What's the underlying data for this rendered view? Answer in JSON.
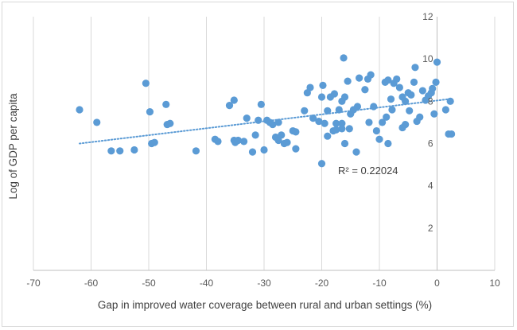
{
  "chart_data": {
    "type": "scatter",
    "title": "",
    "xlabel": "Gap in improved water coverage between rural and urban settings (%)",
    "ylabel": "Log of GDP per capita",
    "xlim": [
      -70,
      10
    ],
    "ylim": [
      0,
      12
    ],
    "xticks": [
      "-70",
      "-60",
      "-50",
      "-40",
      "-30",
      "-20",
      "-10",
      "0",
      "10"
    ],
    "yticks": [
      "0",
      "2",
      "4",
      "6",
      "8",
      "10",
      "12"
    ],
    "grid": "vertical",
    "annotation": "R² = 0.22024",
    "trendline": {
      "type": "linear",
      "x": [
        -62,
        2
      ],
      "y": [
        6.0,
        8.1
      ]
    },
    "colors": {
      "marker": "#5b9bd5",
      "trendline": "#5b9bd5",
      "grid": "#d9d9d9"
    },
    "points": [
      {
        "x": -62,
        "y": 7.6
      },
      {
        "x": -59,
        "y": 7.0
      },
      {
        "x": -56.5,
        "y": 5.65
      },
      {
        "x": -55,
        "y": 5.65
      },
      {
        "x": -52.5,
        "y": 5.7
      },
      {
        "x": -50.5,
        "y": 8.85
      },
      {
        "x": -49.8,
        "y": 7.5
      },
      {
        "x": -49.5,
        "y": 6.0
      },
      {
        "x": -49,
        "y": 6.05
      },
      {
        "x": -47,
        "y": 7.85
      },
      {
        "x": -46.8,
        "y": 6.9
      },
      {
        "x": -46.3,
        "y": 6.95
      },
      {
        "x": -41.8,
        "y": 5.65
      },
      {
        "x": -38.5,
        "y": 6.2
      },
      {
        "x": -38,
        "y": 6.1
      },
      {
        "x": -36,
        "y": 7.8
      },
      {
        "x": -35.2,
        "y": 8.05
      },
      {
        "x": -35.2,
        "y": 6.15
      },
      {
        "x": -35,
        "y": 6.05
      },
      {
        "x": -34.5,
        "y": 6.15
      },
      {
        "x": -33.5,
        "y": 6.1
      },
      {
        "x": -33,
        "y": 7.2
      },
      {
        "x": -32,
        "y": 5.6
      },
      {
        "x": -31.5,
        "y": 6.4
      },
      {
        "x": -31,
        "y": 7.1
      },
      {
        "x": -30.5,
        "y": 7.85
      },
      {
        "x": -30,
        "y": 5.7
      },
      {
        "x": -29.5,
        "y": 7.1
      },
      {
        "x": -29,
        "y": 7.0
      },
      {
        "x": -28.5,
        "y": 6.9
      },
      {
        "x": -28,
        "y": 6.3
      },
      {
        "x": -27.5,
        "y": 7.0
      },
      {
        "x": -27.5,
        "y": 6.15
      },
      {
        "x": -27,
        "y": 6.4
      },
      {
        "x": -26.5,
        "y": 6.0
      },
      {
        "x": -26,
        "y": 6.05
      },
      {
        "x": -25,
        "y": 6.6
      },
      {
        "x": -24.5,
        "y": 5.75
      },
      {
        "x": -24.5,
        "y": 6.55
      },
      {
        "x": -23,
        "y": 7.55
      },
      {
        "x": -22.5,
        "y": 8.4
      },
      {
        "x": -22,
        "y": 8.65
      },
      {
        "x": -21.5,
        "y": 7.2
      },
      {
        "x": -20.5,
        "y": 7.05
      },
      {
        "x": -20,
        "y": 5.05
      },
      {
        "x": -20,
        "y": 8.2
      },
      {
        "x": -19.8,
        "y": 8.75
      },
      {
        "x": -19.5,
        "y": 6.95
      },
      {
        "x": -19,
        "y": 7.55
      },
      {
        "x": -19,
        "y": 6.35
      },
      {
        "x": -18.5,
        "y": 8.2
      },
      {
        "x": -18,
        "y": 6.6
      },
      {
        "x": -17.8,
        "y": 8.35
      },
      {
        "x": -17.5,
        "y": 6.95
      },
      {
        "x": -17.5,
        "y": 6.65
      },
      {
        "x": -17,
        "y": 7.6
      },
      {
        "x": -16.5,
        "y": 6.95
      },
      {
        "x": -16.5,
        "y": 6.7
      },
      {
        "x": -16.5,
        "y": 8.0
      },
      {
        "x": -16.2,
        "y": 10.05
      },
      {
        "x": -16,
        "y": 8.2
      },
      {
        "x": -16,
        "y": 6.0
      },
      {
        "x": -15.5,
        "y": 8.95
      },
      {
        "x": -15.2,
        "y": 6.7
      },
      {
        "x": -15,
        "y": 7.4
      },
      {
        "x": -14.5,
        "y": 7.6
      },
      {
        "x": -14,
        "y": 5.6
      },
      {
        "x": -13.8,
        "y": 7.75
      },
      {
        "x": -13.5,
        "y": 9.1
      },
      {
        "x": -12.5,
        "y": 8.55
      },
      {
        "x": -12,
        "y": 9.05
      },
      {
        "x": -11.8,
        "y": 7.0
      },
      {
        "x": -11.5,
        "y": 9.25
      },
      {
        "x": -11,
        "y": 7.75
      },
      {
        "x": -10.5,
        "y": 6.6
      },
      {
        "x": -10,
        "y": 6.2
      },
      {
        "x": -9.5,
        "y": 7.0
      },
      {
        "x": -9,
        "y": 8.9
      },
      {
        "x": -8.8,
        "y": 7.25
      },
      {
        "x": -8.5,
        "y": 9.0
      },
      {
        "x": -8.5,
        "y": 6.0
      },
      {
        "x": -8,
        "y": 8.1
      },
      {
        "x": -7.8,
        "y": 7.6
      },
      {
        "x": -7.5,
        "y": 8.85
      },
      {
        "x": -7,
        "y": 9.05
      },
      {
        "x": -6.5,
        "y": 8.65
      },
      {
        "x": -6,
        "y": 8.2
      },
      {
        "x": -6,
        "y": 6.75
      },
      {
        "x": -5.5,
        "y": 6.9
      },
      {
        "x": -5.5,
        "y": 8.0
      },
      {
        "x": -5,
        "y": 8.4
      },
      {
        "x": -4.8,
        "y": 7.55
      },
      {
        "x": -4.5,
        "y": 8.3
      },
      {
        "x": -4,
        "y": 8.9
      },
      {
        "x": -3.8,
        "y": 9.6
      },
      {
        "x": -3.5,
        "y": 7.05
      },
      {
        "x": -3,
        "y": 7.25
      },
      {
        "x": -2.5,
        "y": 8.5
      },
      {
        "x": -2,
        "y": 8.05
      },
      {
        "x": -1.5,
        "y": 8.25
      },
      {
        "x": -1,
        "y": 8.4
      },
      {
        "x": -0.8,
        "y": 8.6
      },
      {
        "x": -0.5,
        "y": 7.4
      },
      {
        "x": -0.2,
        "y": 8.9
      },
      {
        "x": 0,
        "y": 9.85
      },
      {
        "x": 1.5,
        "y": 7.6
      },
      {
        "x": 2,
        "y": 6.45
      },
      {
        "x": 2.3,
        "y": 8.0
      },
      {
        "x": 2.5,
        "y": 6.45
      }
    ]
  }
}
